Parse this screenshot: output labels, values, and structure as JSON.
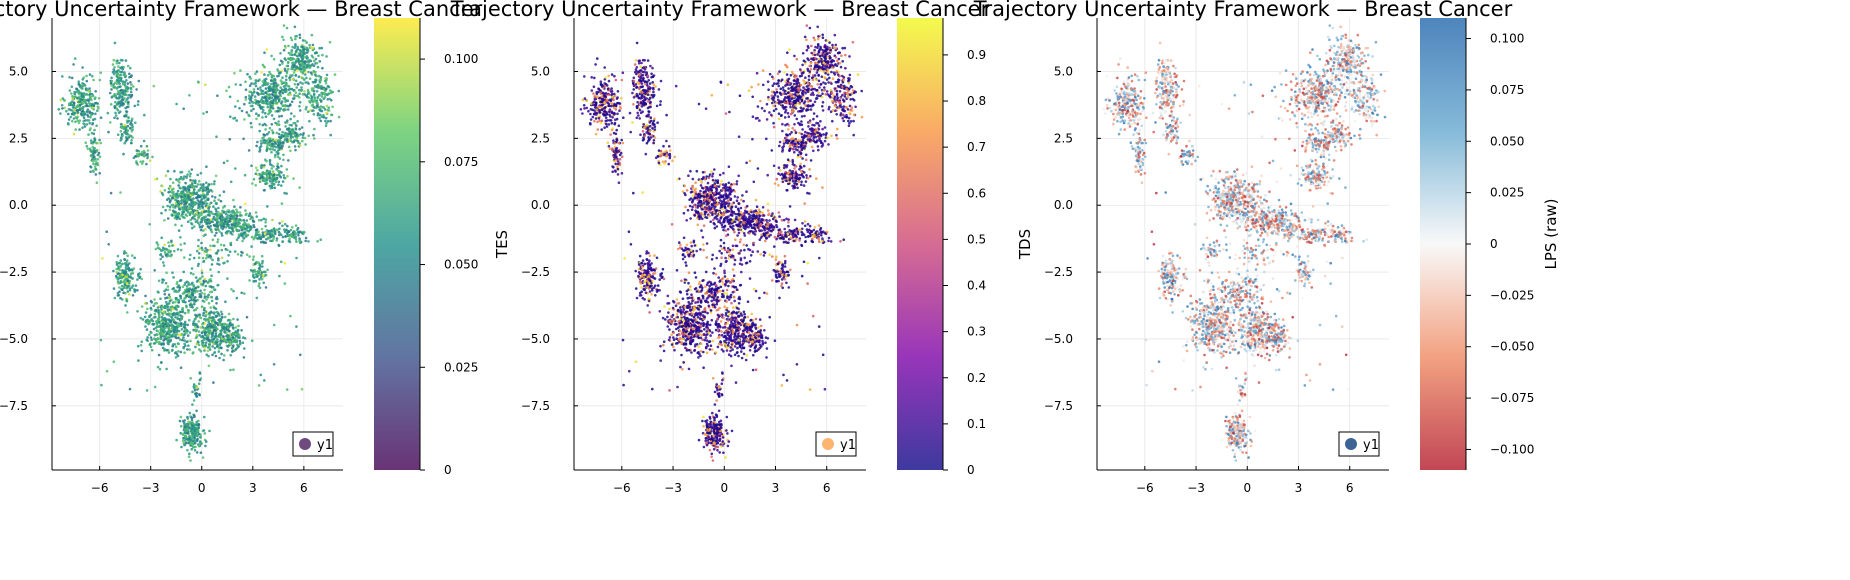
{
  "chart_data": [
    {
      "type": "scatter",
      "title": "Trajectory Uncertainty Framework — Breast Cancer",
      "xlabel": "",
      "ylabel": "",
      "xlim": [
        -8.8,
        8.3
      ],
      "ylim": [
        -9.9,
        7.0
      ],
      "x_ticks": [
        -6,
        -3,
        0,
        3,
        6
      ],
      "y_ticks": [
        -7.5,
        -5.0,
        -2.5,
        0.0,
        2.5,
        5.0
      ],
      "grid": true,
      "legend": {
        "position": "bottom-right",
        "entries": [
          {
            "name": "y1",
            "color": "#6e4a7f"
          }
        ]
      },
      "colorbar": {
        "label": "",
        "range": [
          0,
          0.11
        ],
        "ticks": [
          0,
          0.025,
          0.05,
          0.075,
          0.1
        ],
        "colormap": "viridis"
      },
      "base_color_value": 0.06
    },
    {
      "type": "scatter",
      "title": "Trajectory Uncertainty Framework — Breast Cancer",
      "xlabel": "",
      "ylabel": "TES",
      "xlim": [
        -8.8,
        8.3
      ],
      "ylim": [
        -9.9,
        7.0
      ],
      "x_ticks": [
        -6,
        -3,
        0,
        3,
        6
      ],
      "y_ticks": [
        -7.5,
        -5.0,
        -2.5,
        0.0,
        2.5,
        5.0
      ],
      "grid": true,
      "legend": {
        "position": "bottom-right",
        "entries": [
          {
            "name": "y1",
            "color": "#fdb46e"
          }
        ]
      },
      "colorbar": {
        "label": "",
        "range": [
          0,
          0.98
        ],
        "ticks": [
          0,
          0.1,
          0.2,
          0.3,
          0.4,
          0.5,
          0.6,
          0.7,
          0.8,
          0.9
        ],
        "colormap": "plasma"
      },
      "base_color_value": 0.05
    },
    {
      "type": "scatter",
      "title": "Trajectory Uncertainty Framework — Breast Cancer",
      "xlabel": "",
      "ylabel": "TDS",
      "xlim": [
        -8.8,
        8.3
      ],
      "ylim": [
        -9.9,
        7.0
      ],
      "x_ticks": [
        -6,
        -3,
        0,
        3,
        6
      ],
      "y_ticks": [
        -7.5,
        -5.0,
        -2.5,
        0.0,
        2.5,
        5.0
      ],
      "grid": true,
      "legend": {
        "position": "bottom-right",
        "entries": [
          {
            "name": "y1",
            "color": "#3c6596"
          }
        ]
      },
      "colorbar": {
        "label": "LPS (raw)",
        "range": [
          -0.11,
          0.11
        ],
        "ticks": [
          -0.1,
          -0.075,
          -0.05,
          -0.025,
          0,
          0.025,
          0.05,
          0.075,
          0.1
        ],
        "colormap": "rdbu"
      },
      "base_color_value": 0.0
    }
  ],
  "clusters": [
    {
      "x": -7.0,
      "y": 3.8,
      "rx": 0.9,
      "ry": 0.95,
      "n": 260
    },
    {
      "x": -6.3,
      "y": 1.9,
      "rx": 0.35,
      "ry": 0.75,
      "n": 70
    },
    {
      "x": -4.7,
      "y": 4.4,
      "rx": 0.6,
      "ry": 1.05,
      "n": 190
    },
    {
      "x": -4.4,
      "y": 2.8,
      "rx": 0.4,
      "ry": 0.5,
      "n": 60
    },
    {
      "x": -3.5,
      "y": 1.9,
      "rx": 0.45,
      "ry": 0.35,
      "n": 40
    },
    {
      "x": 4.1,
      "y": 4.1,
      "rx": 1.5,
      "ry": 1.0,
      "n": 380
    },
    {
      "x": 5.8,
      "y": 5.4,
      "rx": 1.0,
      "ry": 0.9,
      "n": 230
    },
    {
      "x": 6.9,
      "y": 4.0,
      "rx": 0.8,
      "ry": 1.1,
      "n": 160
    },
    {
      "x": 4.2,
      "y": 2.3,
      "rx": 0.85,
      "ry": 0.45,
      "n": 120
    },
    {
      "x": 5.4,
      "y": 2.6,
      "rx": 0.6,
      "ry": 0.45,
      "n": 80
    },
    {
      "x": 4.0,
      "y": 1.1,
      "rx": 0.8,
      "ry": 0.45,
      "n": 140
    },
    {
      "x": -0.7,
      "y": 0.2,
      "rx": 1.4,
      "ry": 0.75,
      "n": 420
    },
    {
      "x": 1.6,
      "y": -0.6,
      "rx": 1.6,
      "ry": 0.45,
      "n": 300
    },
    {
      "x": 4.3,
      "y": -1.1,
      "rx": 1.9,
      "ry": 0.3,
      "n": 170
    },
    {
      "x": -4.5,
      "y": -2.7,
      "rx": 0.6,
      "ry": 0.7,
      "n": 160
    },
    {
      "x": 3.3,
      "y": -2.5,
      "rx": 0.4,
      "ry": 0.45,
      "n": 60
    },
    {
      "x": -2.0,
      "y": -4.5,
      "rx": 1.2,
      "ry": 1.0,
      "n": 420
    },
    {
      "x": 0.6,
      "y": -4.7,
      "rx": 1.0,
      "ry": 0.8,
      "n": 300
    },
    {
      "x": -0.5,
      "y": -3.3,
      "rx": 1.5,
      "ry": 0.6,
      "n": 180
    },
    {
      "x": 1.8,
      "y": -4.9,
      "rx": 0.6,
      "ry": 0.5,
      "n": 110
    },
    {
      "x": -0.6,
      "y": -8.5,
      "rx": 0.6,
      "ry": 0.65,
      "n": 200
    },
    {
      "x": 0.8,
      "y": -1.8,
      "rx": 1.6,
      "ry": 0.5,
      "n": 70
    },
    {
      "x": -2.0,
      "y": -1.7,
      "rx": 0.6,
      "ry": 0.4,
      "n": 40
    },
    {
      "x": -0.3,
      "y": -6.8,
      "rx": 0.25,
      "ry": 0.6,
      "n": 25
    }
  ]
}
